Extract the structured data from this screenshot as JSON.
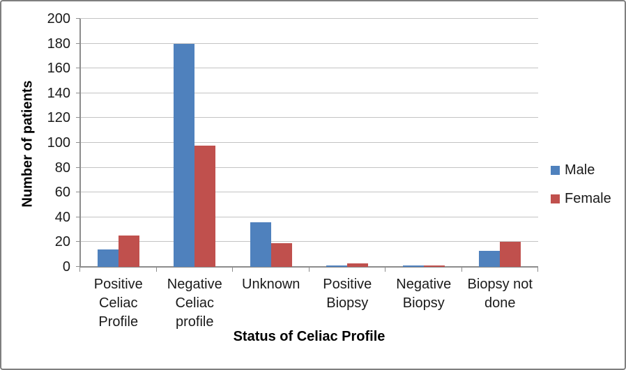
{
  "chart_data": {
    "type": "bar",
    "title": "",
    "categories": [
      "Positive Celiac Profile",
      "Negative Celiac profile",
      "Unknown",
      "Positive Biopsy",
      "Negative Biopsy",
      "Biopsy not done"
    ],
    "category_lines": [
      [
        "Positive",
        "Celiac",
        "Profile"
      ],
      [
        "Negative",
        "Celiac",
        "profile"
      ],
      [
        "Unknown"
      ],
      [
        "Positive",
        "Biopsy"
      ],
      [
        "Negative",
        "Biopsy"
      ],
      [
        "Biopsy not",
        "done"
      ]
    ],
    "series": [
      {
        "name": "Male",
        "color": "#4F81BD",
        "values": [
          14,
          180,
          36,
          1,
          1,
          13
        ]
      },
      {
        "name": "Female",
        "color": "#C0504D",
        "values": [
          25,
          98,
          19,
          3,
          1,
          20
        ]
      }
    ],
    "xlabel": "Status of Celiac Profile",
    "ylabel": "Number of patients",
    "ylim": [
      0,
      200
    ],
    "yticks": [
      0,
      20,
      40,
      60,
      80,
      100,
      120,
      140,
      160,
      180,
      200
    ],
    "grid": true,
    "legend_position": "right"
  },
  "colors": {
    "gridline": "#C3C3C3",
    "axis": "#8C8C8C",
    "border": "#7F7F7F",
    "text": "#1a1a1a"
  }
}
